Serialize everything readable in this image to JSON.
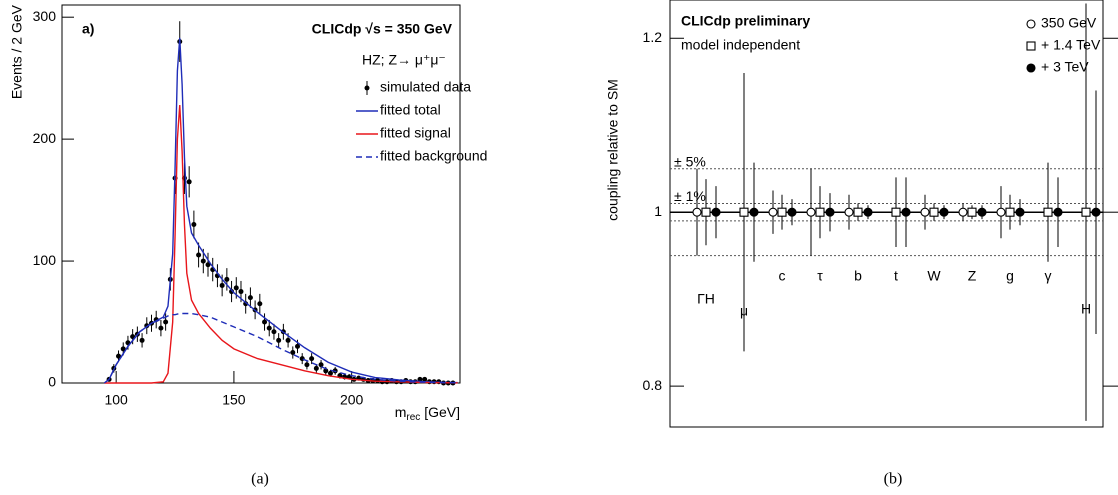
{
  "chart_data": [
    {
      "type": "line",
      "panel_label": "a)",
      "annotations": [
        "CLICdp √s = 350 GeV",
        "HZ; Z→ μ⁺μ⁻"
      ],
      "y_label": "Events / 2 GeV",
      "x_label": [
        "m",
        "rec",
        " [GeV]"
      ],
      "caption": "(a)",
      "xlim": [
        77,
        246
      ],
      "xticks": [
        100,
        150,
        200
      ],
      "ylim": [
        0,
        310
      ],
      "yticks": [
        0,
        100,
        200,
        300
      ],
      "series": [
        {
          "name": "simulated data",
          "style": "points",
          "color": "#000000",
          "x": [
            97,
            99,
            101,
            103,
            105,
            107,
            109,
            111,
            113,
            115,
            117,
            119,
            121,
            123,
            125,
            127,
            129,
            131,
            133,
            135,
            137,
            139,
            141,
            143,
            145,
            147,
            149,
            151,
            153,
            155,
            157,
            159,
            161,
            163,
            165,
            167,
            169,
            171,
            173,
            175,
            177,
            179,
            181,
            183,
            185,
            187,
            189,
            191,
            193,
            195,
            197,
            199,
            201,
            203,
            205,
            207,
            209,
            211,
            213,
            215,
            217,
            219,
            221,
            223,
            225,
            227,
            229,
            231,
            233,
            235,
            237,
            239,
            241,
            243
          ],
          "values": [
            3,
            12,
            22,
            28,
            33,
            38,
            40,
            35,
            47,
            49,
            52,
            45,
            50,
            85,
            168,
            280,
            168,
            165,
            130,
            105,
            100,
            97,
            93,
            88,
            80,
            85,
            75,
            78,
            75,
            65,
            70,
            60,
            65,
            50,
            45,
            42,
            35,
            42,
            35,
            25,
            30,
            20,
            15,
            20,
            12,
            15,
            10,
            8,
            10,
            6,
            5,
            5,
            3,
            4,
            3,
            2,
            2,
            2,
            1,
            1,
            2,
            1,
            1,
            2,
            1,
            1,
            3,
            3,
            1,
            1,
            1,
            0,
            0,
            0
          ],
          "errors": [
            1.7,
            3.5,
            4.7,
            5.3,
            5.7,
            6.2,
            6.3,
            5.9,
            6.9,
            7,
            7.2,
            6.7,
            7.1,
            9.2,
            13,
            16.7,
            13,
            12.8,
            11.4,
            10.2,
            10,
            9.8,
            9.6,
            9.4,
            8.9,
            9.2,
            8.7,
            8.8,
            8.7,
            8.1,
            8.4,
            7.7,
            8.1,
            7.1,
            6.7,
            6.5,
            5.9,
            6.5,
            5.9,
            5,
            5.5,
            4.5,
            3.9,
            4.5,
            3.5,
            3.9,
            3.2,
            2.8,
            3.2,
            2.4,
            2.2,
            2.2,
            1.7,
            2,
            1.7,
            1.4,
            1.4,
            1.4,
            1,
            1,
            1.4,
            1,
            1,
            1.4,
            1,
            1,
            1.7,
            1.7,
            1,
            1,
            1,
            0,
            0,
            0
          ]
        },
        {
          "name": "fitted total",
          "style": "solid",
          "color": "#1f2db8",
          "x": [
            95,
            97,
            100,
            105,
            110,
            115,
            120,
            122,
            124,
            125,
            126,
            127,
            128,
            129,
            130,
            132,
            135,
            140,
            145,
            150,
            160,
            170,
            180,
            190,
            200,
            210,
            220,
            230,
            240,
            245
          ],
          "values": [
            0,
            3,
            15,
            30,
            42,
            49,
            54,
            63,
            106,
            176,
            256,
            283,
            245,
            185,
            145,
            123,
            113,
            98,
            85,
            74,
            58,
            43,
            29,
            17,
            9,
            4.5,
            2.5,
            1.2,
            0.5,
            0.3
          ]
        },
        {
          "name": "fitted signal",
          "style": "solid",
          "color": "#e8161b",
          "x": [
            95,
            97,
            100,
            105,
            110,
            115,
            120,
            122,
            124,
            125,
            126,
            127,
            128,
            129,
            130,
            132,
            135,
            140,
            145,
            150,
            160,
            170,
            180,
            190,
            200,
            210,
            220,
            230,
            240,
            245
          ],
          "values": [
            0,
            0,
            0,
            0,
            0,
            0,
            1,
            8,
            50,
            120,
            200,
            228,
            190,
            130,
            90,
            68,
            57,
            45,
            35,
            28,
            20,
            15,
            10,
            6,
            3,
            1.5,
            1,
            0.5,
            0.2,
            0.1
          ]
        },
        {
          "name": "fitted background",
          "style": "dashed",
          "color": "#1f2db8",
          "x": [
            95,
            97,
            100,
            105,
            110,
            115,
            120,
            122,
            124,
            125,
            126,
            127,
            128,
            129,
            130,
            132,
            135,
            140,
            145,
            150,
            160,
            170,
            180,
            190,
            200,
            210,
            220,
            230,
            240,
            245
          ],
          "values": [
            0,
            3,
            15,
            30,
            42,
            49,
            53,
            55,
            56,
            56,
            56.5,
            57,
            57,
            57,
            57,
            57,
            56,
            54,
            50,
            46,
            38,
            28,
            19,
            11,
            6,
            3,
            1.5,
            0.7,
            0.3,
            0.2
          ]
        }
      ]
    },
    {
      "type": "errorbar",
      "annotations": [
        "CLICdp preliminary",
        "model independent"
      ],
      "y_label": "coupling relative to SM",
      "caption": "(b)",
      "categories": [
        "ΓH",
        "μ",
        "c",
        "τ",
        "b",
        "t",
        "W",
        "Z",
        "g",
        "γ",
        "H"
      ],
      "ylim": [
        0.753,
        1.244
      ],
      "yticks": [
        0.8,
        1,
        1.2
      ],
      "ref_lines": [
        {
          "value": 1.05,
          "label": "± 5%"
        },
        {
          "value": 0.95
        },
        {
          "value": 1.01,
          "label": "± 1%"
        },
        {
          "value": 0.99
        },
        {
          "value": 1,
          "style": "solid"
        }
      ],
      "series": [
        {
          "name": "350 GeV",
          "marker": "circle-open",
          "values": [
            1,
            null,
            1,
            1,
            1,
            null,
            1,
            1,
            1,
            null,
            null
          ],
          "errors": [
            0.05,
            null,
            0.025,
            0.05,
            0.02,
            null,
            0.02,
            0.01,
            0.03,
            null,
            null
          ]
        },
        {
          "name": "+ 1.4 TeV",
          "marker": "square-open",
          "values": [
            1,
            1,
            1,
            1,
            1,
            1,
            1,
            1,
            1,
            1,
            1
          ],
          "errors": [
            0.038,
            0.16,
            0.02,
            0.03,
            0.01,
            0.04,
            0.01,
            0.008,
            0.02,
            0.057,
            0.24
          ]
        },
        {
          "name": "+ 3 TeV",
          "marker": "circle-filled",
          "values": [
            1,
            1,
            1,
            1,
            1,
            1,
            1,
            1,
            1,
            1,
            1
          ],
          "errors": [
            0.03,
            0.057,
            0.015,
            0.022,
            0.008,
            0.04,
            0.008,
            0.008,
            0.015,
            0.04,
            0.14
          ]
        }
      ]
    }
  ]
}
